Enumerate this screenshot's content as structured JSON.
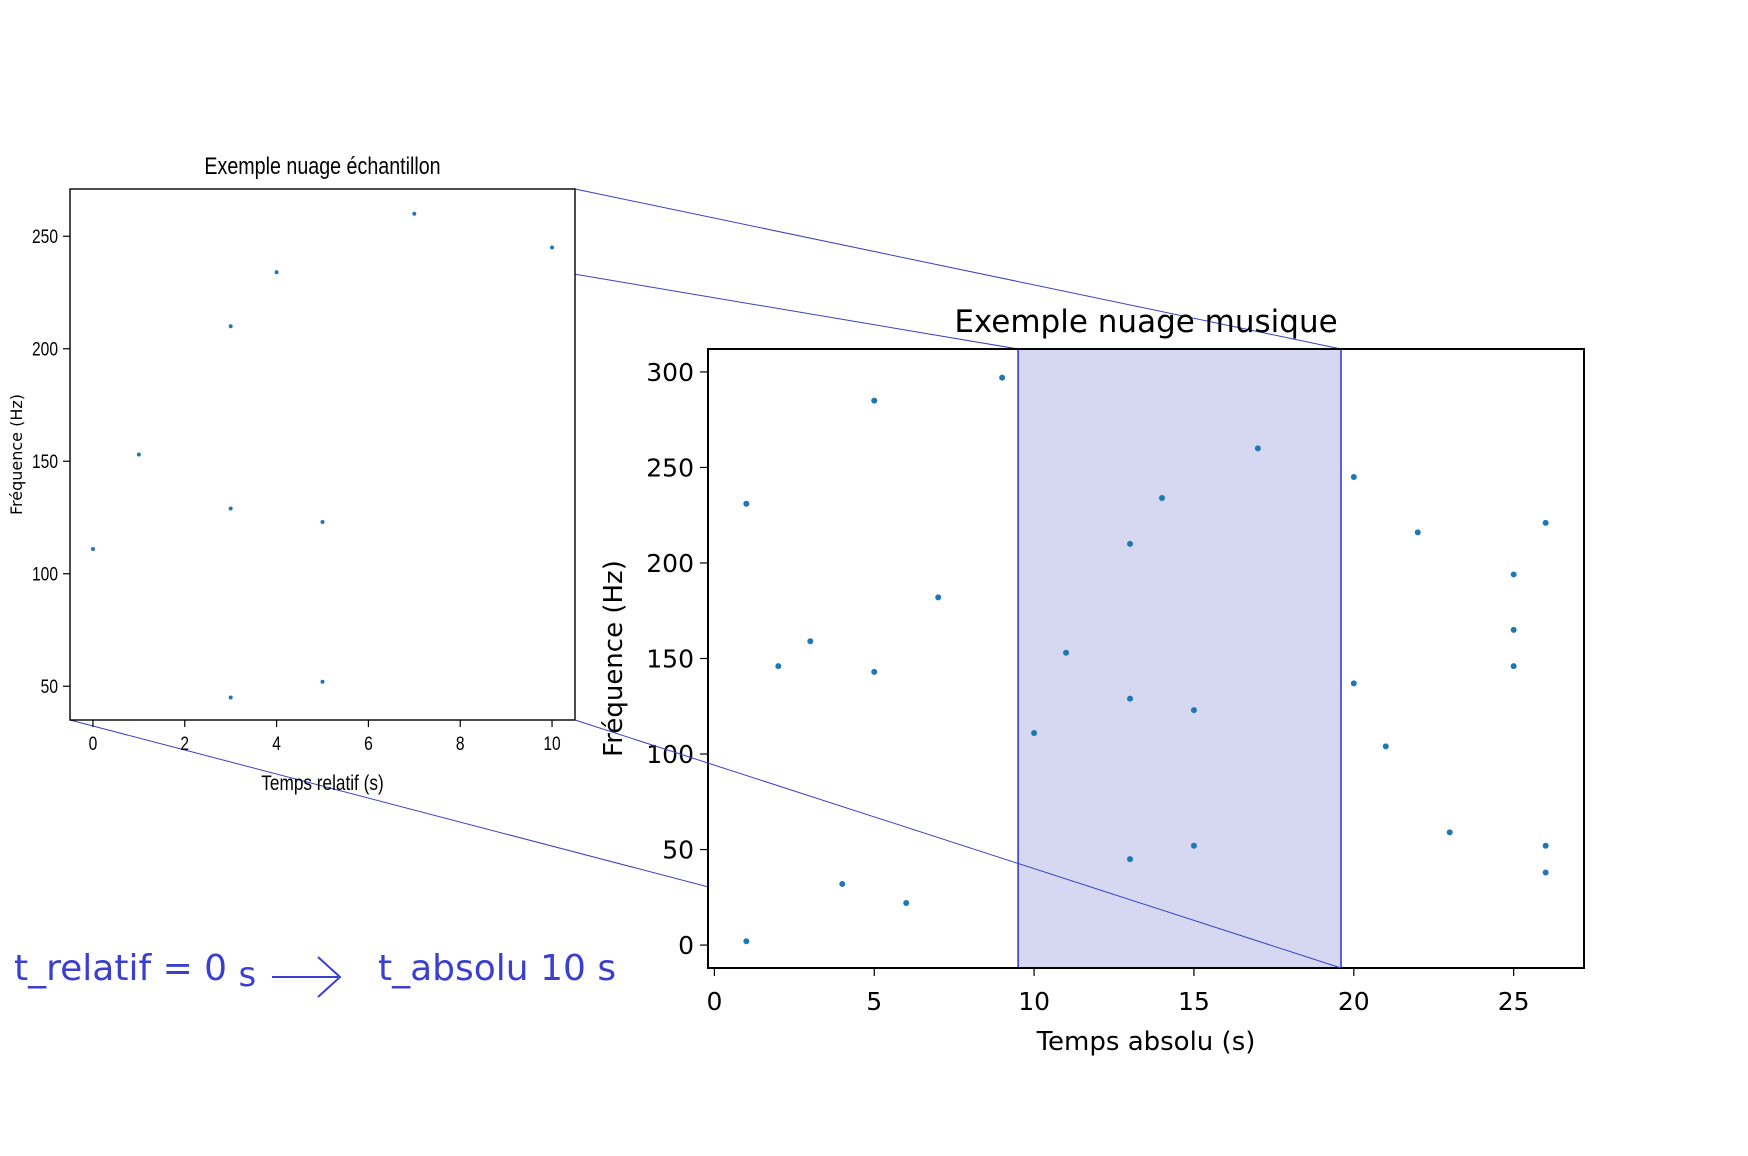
{
  "chart_data": [
    {
      "type": "scatter",
      "title": "Exemple nuage échantillon",
      "xlabel": "Temps relatif (s)",
      "ylabel": "Fréquence (Hz)",
      "xlim": [
        -0.5,
        10.5
      ],
      "ylim": [
        35,
        271
      ],
      "xticks": [
        0,
        2,
        4,
        6,
        8,
        10
      ],
      "yticks": [
        50,
        100,
        150,
        200,
        250
      ],
      "grid": false,
      "marker_color": "#1f77b4",
      "points": [
        {
          "x": 0,
          "y": 111
        },
        {
          "x": 1,
          "y": 153
        },
        {
          "x": 3,
          "y": 210
        },
        {
          "x": 3,
          "y": 129
        },
        {
          "x": 3,
          "y": 45
        },
        {
          "x": 4,
          "y": 234
        },
        {
          "x": 5,
          "y": 123
        },
        {
          "x": 5,
          "y": 52
        },
        {
          "x": 7,
          "y": 260
        },
        {
          "x": 10,
          "y": 245
        }
      ]
    },
    {
      "type": "scatter",
      "title": "Exemple nuage musique",
      "xlabel": "Temps absolu (s)",
      "ylabel": "Fréquence (Hz)",
      "xlim": [
        -0.2,
        27.2
      ],
      "ylim": [
        -12,
        312
      ],
      "xticks": [
        0,
        5,
        10,
        15,
        20,
        25
      ],
      "yticks": [
        0,
        50,
        100,
        150,
        200,
        250,
        300
      ],
      "grid": false,
      "marker_color": "#1f77b4",
      "highlight": {
        "x_start": 9.5,
        "x_end": 19.6,
        "color": "#d6d8f2",
        "edge_color": "#3a3fc4"
      },
      "points": [
        {
          "x": 1,
          "y": 2
        },
        {
          "x": 1,
          "y": 231
        },
        {
          "x": 2,
          "y": 146
        },
        {
          "x": 3,
          "y": 159
        },
        {
          "x": 4,
          "y": 32
        },
        {
          "x": 5,
          "y": 285
        },
        {
          "x": 5,
          "y": 143
        },
        {
          "x": 6,
          "y": 22
        },
        {
          "x": 7,
          "y": 182
        },
        {
          "x": 9,
          "y": 297
        },
        {
          "x": 10,
          "y": 111
        },
        {
          "x": 11,
          "y": 153
        },
        {
          "x": 13,
          "y": 210
        },
        {
          "x": 13,
          "y": 129
        },
        {
          "x": 13,
          "y": 45
        },
        {
          "x": 14,
          "y": 234
        },
        {
          "x": 15,
          "y": 123
        },
        {
          "x": 15,
          "y": 52
        },
        {
          "x": 17,
          "y": 260
        },
        {
          "x": 20,
          "y": 245
        },
        {
          "x": 20,
          "y": 137
        },
        {
          "x": 21,
          "y": 104
        },
        {
          "x": 22,
          "y": 216
        },
        {
          "x": 23,
          "y": 59
        },
        {
          "x": 25,
          "y": 194
        },
        {
          "x": 25,
          "y": 165
        },
        {
          "x": 25,
          "y": 146
        },
        {
          "x": 26,
          "y": 221
        },
        {
          "x": 26,
          "y": 52
        },
        {
          "x": 26,
          "y": 38
        }
      ]
    }
  ],
  "annotation": {
    "left": "t_relatif = 0",
    "left_unit": "s",
    "right": "t_absolu 10 s",
    "color": "#3b3fd0"
  }
}
